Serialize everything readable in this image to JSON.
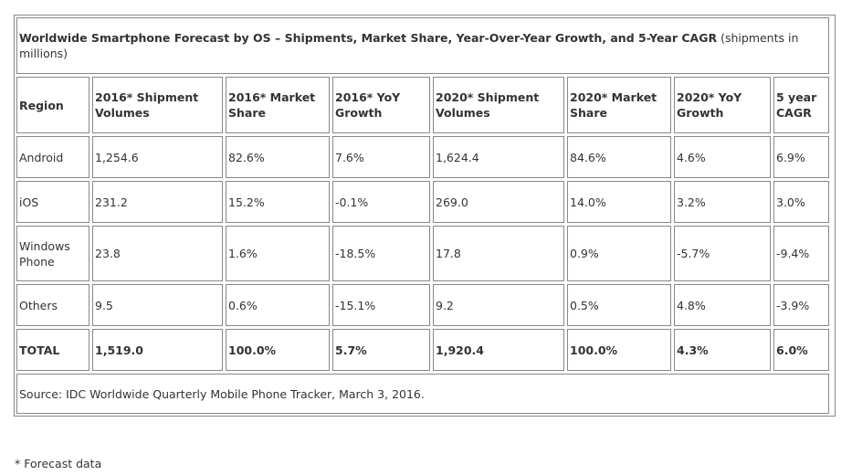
{
  "title_bold": "Worldwide Smartphone Forecast by OS – Shipments, Market Share, Year-Over-Year Growth, and 5-Year CAGR",
  "title_rest": " (shipments in millions)",
  "headers": [
    "Region",
    "2016* Shipment Volumes",
    "2016* Market Share",
    "2016* YoY Growth",
    "2020* Shipment Volumes",
    "2020* Market Share",
    "2020* YoY Growth",
    "5 year CAGR"
  ],
  "rows": [
    [
      "Android",
      "1,254.6",
      "82.6%",
      "7.6%",
      "1,624.4",
      "84.6%",
      "4.6%",
      "6.9%"
    ],
    [
      "iOS",
      "231.2",
      "15.2%",
      "-0.1%",
      "269.0",
      "14.0%",
      "3.2%",
      "3.0%"
    ],
    [
      "Windows Phone",
      "23.8",
      "1.6%",
      "-18.5%",
      "17.8",
      "0.9%",
      "-5.7%",
      "-9.4%"
    ],
    [
      "Others",
      "9.5",
      "0.6%",
      "-15.1%",
      "9.2",
      "0.5%",
      "4.8%",
      "-3.9%"
    ],
    [
      "TOTAL",
      "1,519.0",
      "100.0%",
      "5.7%",
      "1,920.4",
      "100.0%",
      "4.3%",
      "6.0%"
    ]
  ],
  "source": "Source: IDC Worldwide Quarterly Mobile Phone Tracker, March 3, 2016.",
  "footnote": "* Forecast data"
}
